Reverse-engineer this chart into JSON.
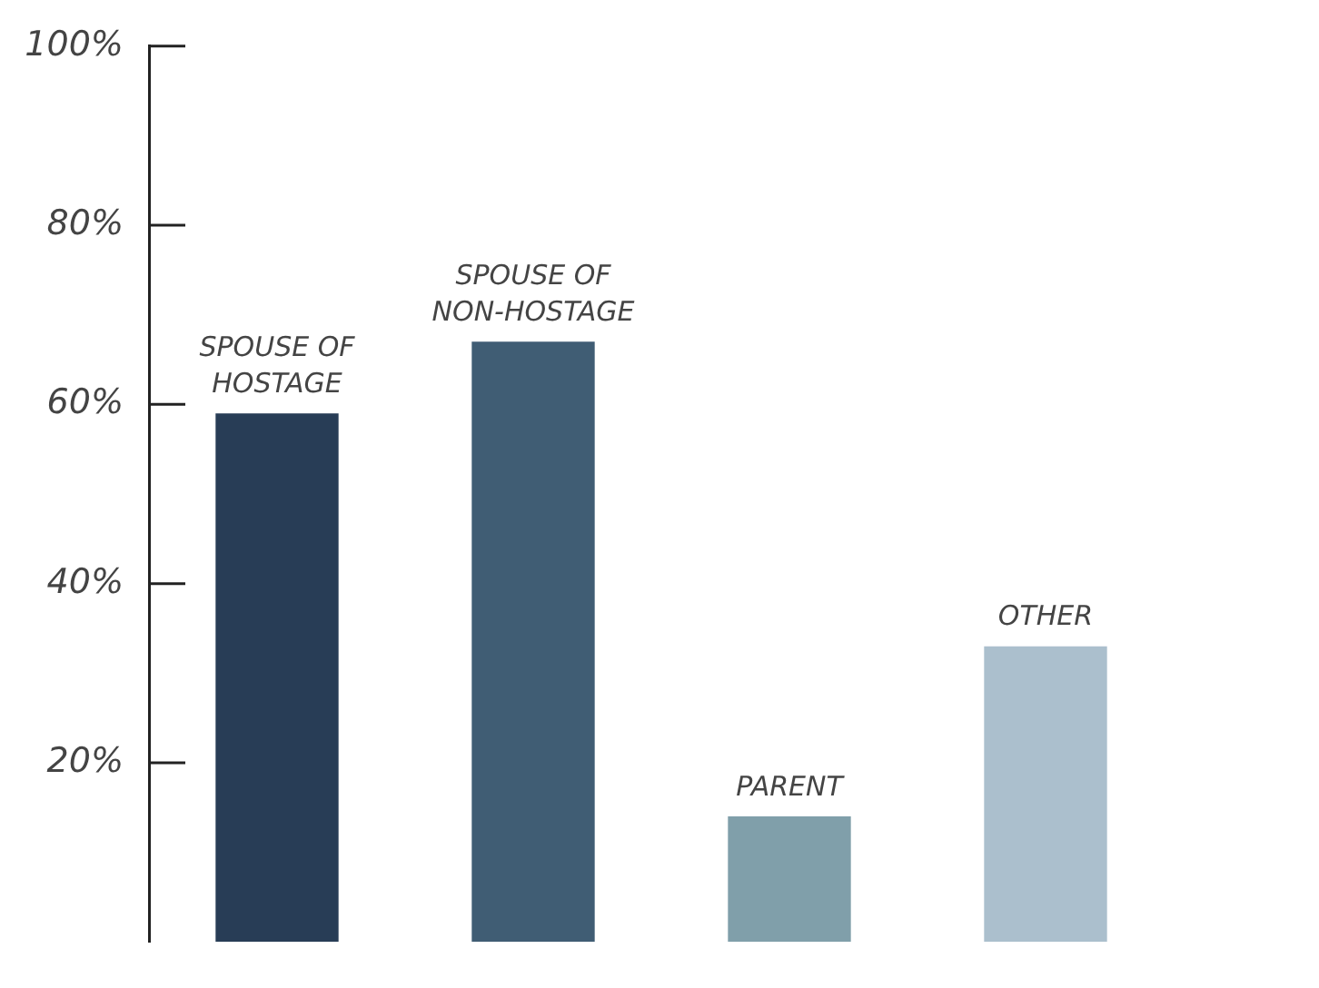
{
  "chart_data": {
    "type": "bar",
    "categories": [
      "SPOUSE OF HOSTAGE",
      "SPOUSE OF NON-HOSTAGE",
      "PARENT",
      "OTHER"
    ],
    "values": [
      59,
      67,
      14,
      33
    ],
    "colors": [
      "#283d56",
      "#405d74",
      "#809faa",
      "#abbfcd"
    ],
    "ylim": [
      0,
      100
    ],
    "yticks": [
      {
        "value": 20,
        "label": "20%"
      },
      {
        "value": 40,
        "label": "40%"
      },
      {
        "value": 60,
        "label": "60%"
      },
      {
        "value": 80,
        "label": "80%"
      },
      {
        "value": 100,
        "label": "100%"
      }
    ],
    "grid": false,
    "legend": false
  }
}
